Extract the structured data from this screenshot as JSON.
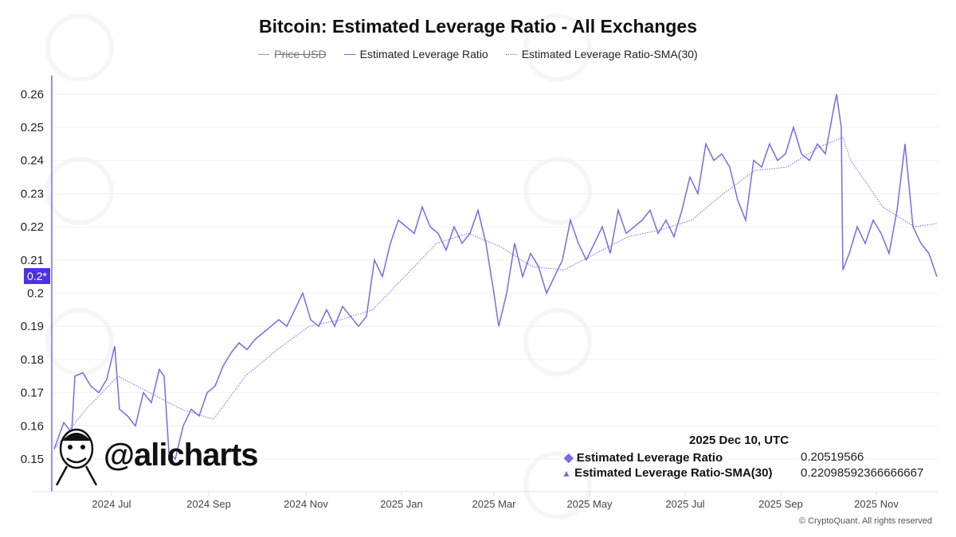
{
  "chart_data": {
    "type": "line",
    "title": "Bitcoin: Estimated Leverage Ratio - All Exchanges",
    "legend": [
      {
        "label": "Price USD",
        "hidden": true,
        "color": "#999999"
      },
      {
        "label": "Estimated Leverage Ratio",
        "style": "solid",
        "color": "#7b68ee"
      },
      {
        "label": "Estimated Leverage Ratio-SMA(30)",
        "style": "dotted",
        "color": "#7b68ee"
      }
    ],
    "legend_position": "top-center",
    "x_start_date": "2024-05-26",
    "x_end_date": "2025-12-10",
    "x_unit": "days since start",
    "xlim": [
      0,
      554
    ],
    "x_ticks": [
      {
        "label": "2024 Jul",
        "day": 36
      },
      {
        "label": "2024 Sep",
        "day": 97
      },
      {
        "label": "2024 Nov",
        "day": 158
      },
      {
        "label": "2025 Jan",
        "day": 218
      },
      {
        "label": "2025 Mar",
        "day": 276
      },
      {
        "label": "2025 May",
        "day": 336
      },
      {
        "label": "2025 Jul",
        "day": 396
      },
      {
        "label": "2025 Sep",
        "day": 456
      },
      {
        "label": "2025 Nov",
        "day": 516
      }
    ],
    "ylim": [
      0.145,
      0.265
    ],
    "y_ticks": [
      0.15,
      0.16,
      0.17,
      0.18,
      0.19,
      0.2,
      0.21,
      0.22,
      0.23,
      0.24,
      0.25,
      0.26
    ],
    "y_tick_labels": [
      "0.15",
      "0.16",
      "0.17",
      "0.18",
      "0.19",
      "0.2",
      "0.21",
      "0.22",
      "0.23",
      "0.24",
      "0.25",
      "0.26"
    ],
    "cursor_label": "0.2*",
    "series": [
      {
        "name": "Estimated Leverage Ratio",
        "points": [
          [
            0,
            0.153
          ],
          [
            6,
            0.161
          ],
          [
            11,
            0.158
          ],
          [
            13,
            0.175
          ],
          [
            18,
            0.176
          ],
          [
            23,
            0.172
          ],
          [
            28,
            0.17
          ],
          [
            33,
            0.174
          ],
          [
            38,
            0.184
          ],
          [
            41,
            0.165
          ],
          [
            46,
            0.163
          ],
          [
            51,
            0.16
          ],
          [
            56,
            0.17
          ],
          [
            61,
            0.167
          ],
          [
            66,
            0.177
          ],
          [
            69,
            0.175
          ],
          [
            72,
            0.152
          ],
          [
            76,
            0.15
          ],
          [
            81,
            0.16
          ],
          [
            86,
            0.165
          ],
          [
            91,
            0.163
          ],
          [
            96,
            0.17
          ],
          [
            101,
            0.172
          ],
          [
            106,
            0.178
          ],
          [
            111,
            0.182
          ],
          [
            116,
            0.185
          ],
          [
            121,
            0.183
          ],
          [
            126,
            0.186
          ],
          [
            131,
            0.188
          ],
          [
            136,
            0.19
          ],
          [
            141,
            0.192
          ],
          [
            146,
            0.19
          ],
          [
            151,
            0.195
          ],
          [
            156,
            0.2
          ],
          [
            161,
            0.192
          ],
          [
            166,
            0.19
          ],
          [
            171,
            0.195
          ],
          [
            176,
            0.19
          ],
          [
            181,
            0.196
          ],
          [
            186,
            0.193
          ],
          [
            191,
            0.19
          ],
          [
            196,
            0.193
          ],
          [
            201,
            0.21
          ],
          [
            206,
            0.205
          ],
          [
            211,
            0.215
          ],
          [
            216,
            0.222
          ],
          [
            221,
            0.22
          ],
          [
            226,
            0.218
          ],
          [
            231,
            0.226
          ],
          [
            236,
            0.22
          ],
          [
            241,
            0.218
          ],
          [
            246,
            0.213
          ],
          [
            251,
            0.22
          ],
          [
            256,
            0.215
          ],
          [
            261,
            0.218
          ],
          [
            266,
            0.225
          ],
          [
            271,
            0.215
          ],
          [
            276,
            0.2
          ],
          [
            279,
            0.19
          ],
          [
            284,
            0.2
          ],
          [
            289,
            0.215
          ],
          [
            294,
            0.205
          ],
          [
            299,
            0.212
          ],
          [
            304,
            0.208
          ],
          [
            309,
            0.2
          ],
          [
            314,
            0.205
          ],
          [
            319,
            0.21
          ],
          [
            324,
            0.222
          ],
          [
            329,
            0.215
          ],
          [
            334,
            0.21
          ],
          [
            339,
            0.215
          ],
          [
            344,
            0.22
          ],
          [
            349,
            0.212
          ],
          [
            354,
            0.225
          ],
          [
            359,
            0.218
          ],
          [
            364,
            0.22
          ],
          [
            369,
            0.222
          ],
          [
            374,
            0.225
          ],
          [
            379,
            0.218
          ],
          [
            384,
            0.222
          ],
          [
            389,
            0.217
          ],
          [
            394,
            0.225
          ],
          [
            399,
            0.235
          ],
          [
            404,
            0.23
          ],
          [
            409,
            0.245
          ],
          [
            414,
            0.24
          ],
          [
            419,
            0.242
          ],
          [
            424,
            0.238
          ],
          [
            429,
            0.228
          ],
          [
            434,
            0.222
          ],
          [
            439,
            0.24
          ],
          [
            444,
            0.238
          ],
          [
            449,
            0.245
          ],
          [
            454,
            0.24
          ],
          [
            459,
            0.242
          ],
          [
            464,
            0.25
          ],
          [
            469,
            0.242
          ],
          [
            474,
            0.24
          ],
          [
            479,
            0.245
          ],
          [
            484,
            0.242
          ],
          [
            489,
            0.255
          ],
          [
            491,
            0.26
          ],
          [
            494,
            0.25
          ],
          [
            495,
            0.207
          ],
          [
            499,
            0.212
          ],
          [
            504,
            0.22
          ],
          [
            509,
            0.215
          ],
          [
            514,
            0.222
          ],
          [
            519,
            0.218
          ],
          [
            524,
            0.212
          ],
          [
            529,
            0.225
          ],
          [
            534,
            0.245
          ],
          [
            539,
            0.22
          ],
          [
            544,
            0.215
          ],
          [
            549,
            0.212
          ],
          [
            554,
            0.205
          ]
        ]
      },
      {
        "name": "Estimated Leverage Ratio-SMA(30)",
        "points": [
          [
            0,
            0.153
          ],
          [
            20,
            0.165
          ],
          [
            40,
            0.175
          ],
          [
            60,
            0.17
          ],
          [
            80,
            0.165
          ],
          [
            100,
            0.162
          ],
          [
            120,
            0.175
          ],
          [
            140,
            0.183
          ],
          [
            160,
            0.19
          ],
          [
            180,
            0.192
          ],
          [
            200,
            0.195
          ],
          [
            220,
            0.205
          ],
          [
            240,
            0.215
          ],
          [
            260,
            0.218
          ],
          [
            280,
            0.214
          ],
          [
            300,
            0.208
          ],
          [
            320,
            0.207
          ],
          [
            340,
            0.212
          ],
          [
            360,
            0.217
          ],
          [
            380,
            0.219
          ],
          [
            400,
            0.222
          ],
          [
            420,
            0.23
          ],
          [
            440,
            0.237
          ],
          [
            460,
            0.238
          ],
          [
            480,
            0.244
          ],
          [
            495,
            0.247
          ],
          [
            500,
            0.24
          ],
          [
            520,
            0.226
          ],
          [
            540,
            0.22
          ],
          [
            554,
            0.221
          ]
        ]
      }
    ],
    "tooltip": {
      "date": "2025 Dec 10, UTC",
      "rows": [
        {
          "label": "Estimated Leverage Ratio",
          "value": "0.20519566"
        },
        {
          "label": "Estimated Leverage Ratio-SMA(30)",
          "value": "0.22098592366666667"
        }
      ]
    }
  },
  "watermark": {
    "handle": "@alicharts",
    "brand": "CryptoQuant"
  },
  "copyright": "© CryptoQuant. All rights reserved"
}
